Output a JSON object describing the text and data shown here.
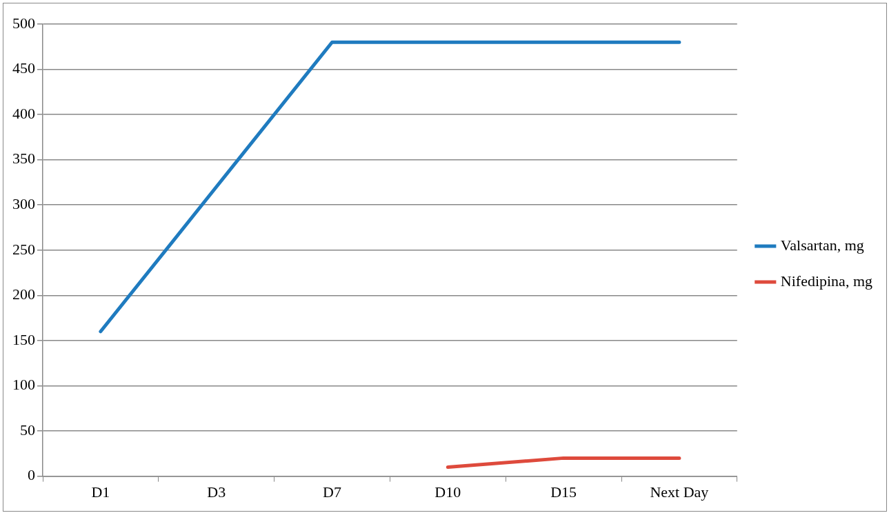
{
  "chart_data": {
    "type": "line",
    "categories": [
      "D1",
      "D3",
      "D7",
      "D10",
      "D15",
      "Next Day"
    ],
    "series": [
      {
        "name": "Valsartan, mg",
        "color": "#1f7bbf",
        "values": [
          160,
          320,
          480,
          480,
          480,
          480
        ]
      },
      {
        "name": "Nifedipina, mg",
        "color": "#de4a3c",
        "values": [
          null,
          null,
          null,
          10,
          20,
          20
        ]
      }
    ],
    "ylim": [
      0,
      500
    ],
    "yticks": [
      0,
      50,
      100,
      150,
      200,
      250,
      300,
      350,
      400,
      450,
      500
    ],
    "grid": "y",
    "legend": "right",
    "marker": "none",
    "line_style": "solid"
  }
}
